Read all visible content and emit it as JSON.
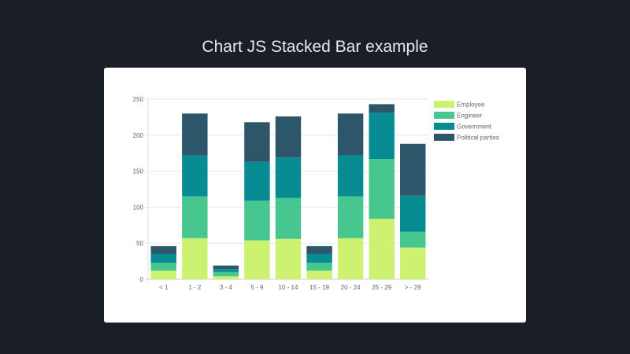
{
  "title": "Chart JS Stacked Bar example",
  "chart_data": {
    "type": "bar",
    "stacked": true,
    "categories": [
      "< 1",
      "1 - 2",
      "3 - 4",
      "5 - 9",
      "10 - 14",
      "15 - 19",
      "20 - 24",
      "25 - 29",
      "> - 29"
    ],
    "series": [
      {
        "name": "Employee",
        "color": "#cdf171",
        "values": [
          12,
          57,
          4,
          54,
          56,
          12,
          57,
          84,
          44
        ]
      },
      {
        "name": "Engineer",
        "color": "#47c690",
        "values": [
          11,
          58,
          6,
          55,
          57,
          11,
          58,
          83,
          22
        ]
      },
      {
        "name": "Government",
        "color": "#078c93",
        "values": [
          12,
          57,
          4,
          54,
          56,
          12,
          57,
          64,
          50
        ]
      },
      {
        "name": "Political parties",
        "color": "#2d566b",
        "values": [
          11,
          58,
          5,
          55,
          57,
          11,
          58,
          12,
          72
        ]
      }
    ],
    "ylim": [
      0,
      250
    ],
    "yticks": [
      0,
      50,
      100,
      150,
      200,
      250
    ],
    "grid": true,
    "legend": "right"
  }
}
